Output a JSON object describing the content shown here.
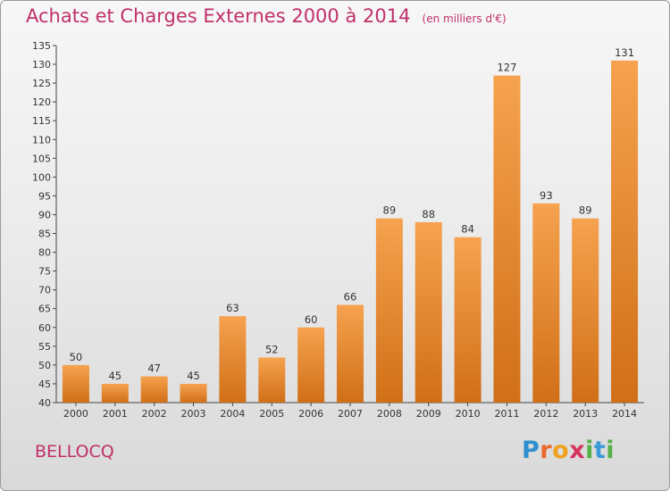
{
  "header": {
    "title": "Achats et Charges Externes 2000 à 2014",
    "unit": "(en milliers d'€)"
  },
  "commune": "BELLOCQ",
  "logo": {
    "text": "Proxiti"
  },
  "colors": {
    "bar_light": "#f6a24f",
    "bar_dark": "#d06f17",
    "title": "#c0306a"
  },
  "chart_data": {
    "type": "bar",
    "categories": [
      "2000",
      "2001",
      "2002",
      "2003",
      "2004",
      "2005",
      "2006",
      "2007",
      "2008",
      "2009",
      "2010",
      "2011",
      "2012",
      "2013",
      "2014"
    ],
    "values": [
      50,
      45,
      47,
      45,
      63,
      52,
      60,
      66,
      89,
      88,
      84,
      127,
      93,
      89,
      131
    ],
    "ylim": [
      40,
      135
    ],
    "yticks": [
      40,
      45,
      50,
      55,
      60,
      65,
      70,
      75,
      80,
      85,
      90,
      95,
      100,
      105,
      110,
      115,
      120,
      125,
      130,
      135
    ],
    "grid": false,
    "legend": "none"
  }
}
